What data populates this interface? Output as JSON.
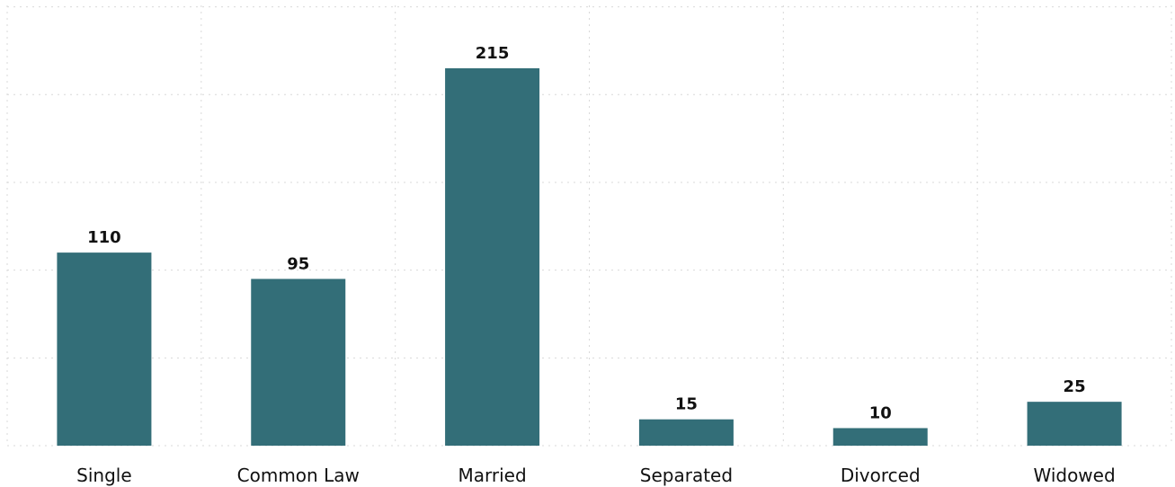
{
  "chart_data": {
    "type": "bar",
    "categories": [
      "Single",
      "Common Law",
      "Married",
      "Separated",
      "Divorced",
      "Widowed"
    ],
    "values": [
      110,
      95,
      215,
      15,
      10,
      25
    ],
    "ylim": [
      0,
      250
    ],
    "grid": true,
    "bar_color": "#336e78",
    "data_labels": [
      "110",
      "95",
      "215",
      "15",
      "10",
      "25"
    ]
  }
}
